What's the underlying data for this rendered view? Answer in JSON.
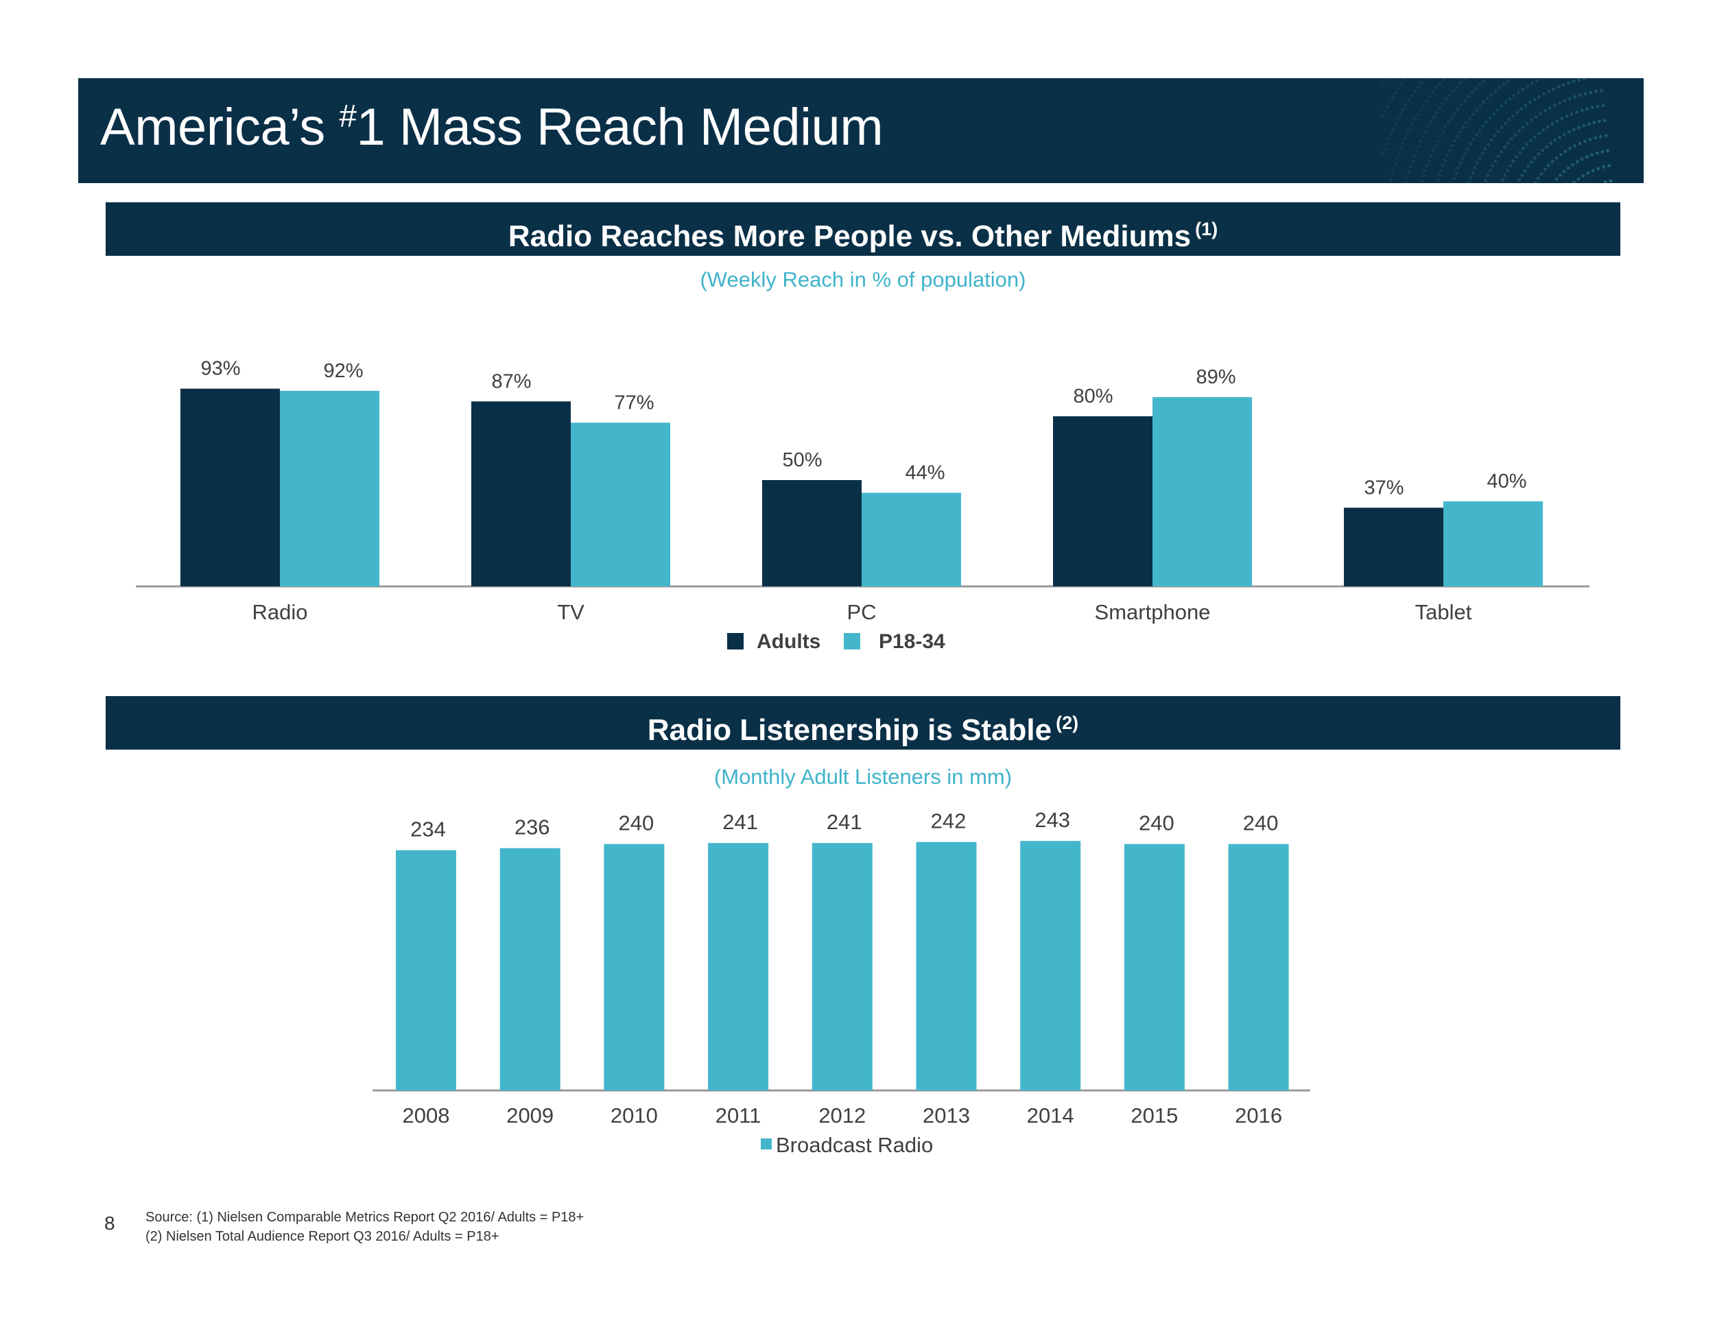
{
  "page": {
    "title_prefix": "America’s ",
    "title_sup": "#",
    "title_rest": "1 Mass Reach Medium",
    "number": "8"
  },
  "colors": {
    "navy": "#0a3047",
    "teal": "#44b6cb",
    "accent_text": "#3fb3ca"
  },
  "section1": {
    "heading": "Radio Reaches More People vs. Other Mediums",
    "footnote": "(1)",
    "subtitle": "(Weekly Reach in % of population)"
  },
  "section2": {
    "heading": "Radio Listenership is Stable",
    "footnote": "(2)",
    "subtitle": "(Monthly Adult Listeners in mm)"
  },
  "chart_data": [
    {
      "type": "bar",
      "categories": [
        "Radio",
        "TV",
        "PC",
        "Smartphone",
        "Tablet"
      ],
      "series": [
        {
          "name": "Adults",
          "values": [
            93,
            87,
            50,
            80,
            37
          ],
          "labels": [
            "93%",
            "87%",
            "50%",
            "80%",
            "37%"
          ],
          "color": "#0a3047"
        },
        {
          "name": "P18-34",
          "values": [
            92,
            77,
            44,
            89,
            40
          ],
          "labels": [
            "92%",
            "77%",
            "44%",
            "89%",
            "40%"
          ],
          "color": "#44b6cb"
        }
      ],
      "ylim": [
        0,
        100
      ],
      "legend": "bottom-center",
      "grid": false
    },
    {
      "type": "bar",
      "categories": [
        "2008",
        "2009",
        "2010",
        "2011",
        "2012",
        "2013",
        "2014",
        "2015",
        "2016"
      ],
      "series": [
        {
          "name": "Broadcast Radio",
          "values": [
            234,
            236,
            240,
            241,
            241,
            242,
            243,
            240,
            240
          ],
          "color": "#44b6cb"
        }
      ],
      "ylim": [
        0,
        250
      ],
      "legend": "bottom-center",
      "grid": false
    }
  ],
  "footer": {
    "source_line1": "Source: (1) Nielsen Comparable Metrics Report Q2 2016/ Adults = P18+",
    "source_line2": "(2) Nielsen Total Audience Report Q3 2016/ Adults = P18+"
  }
}
